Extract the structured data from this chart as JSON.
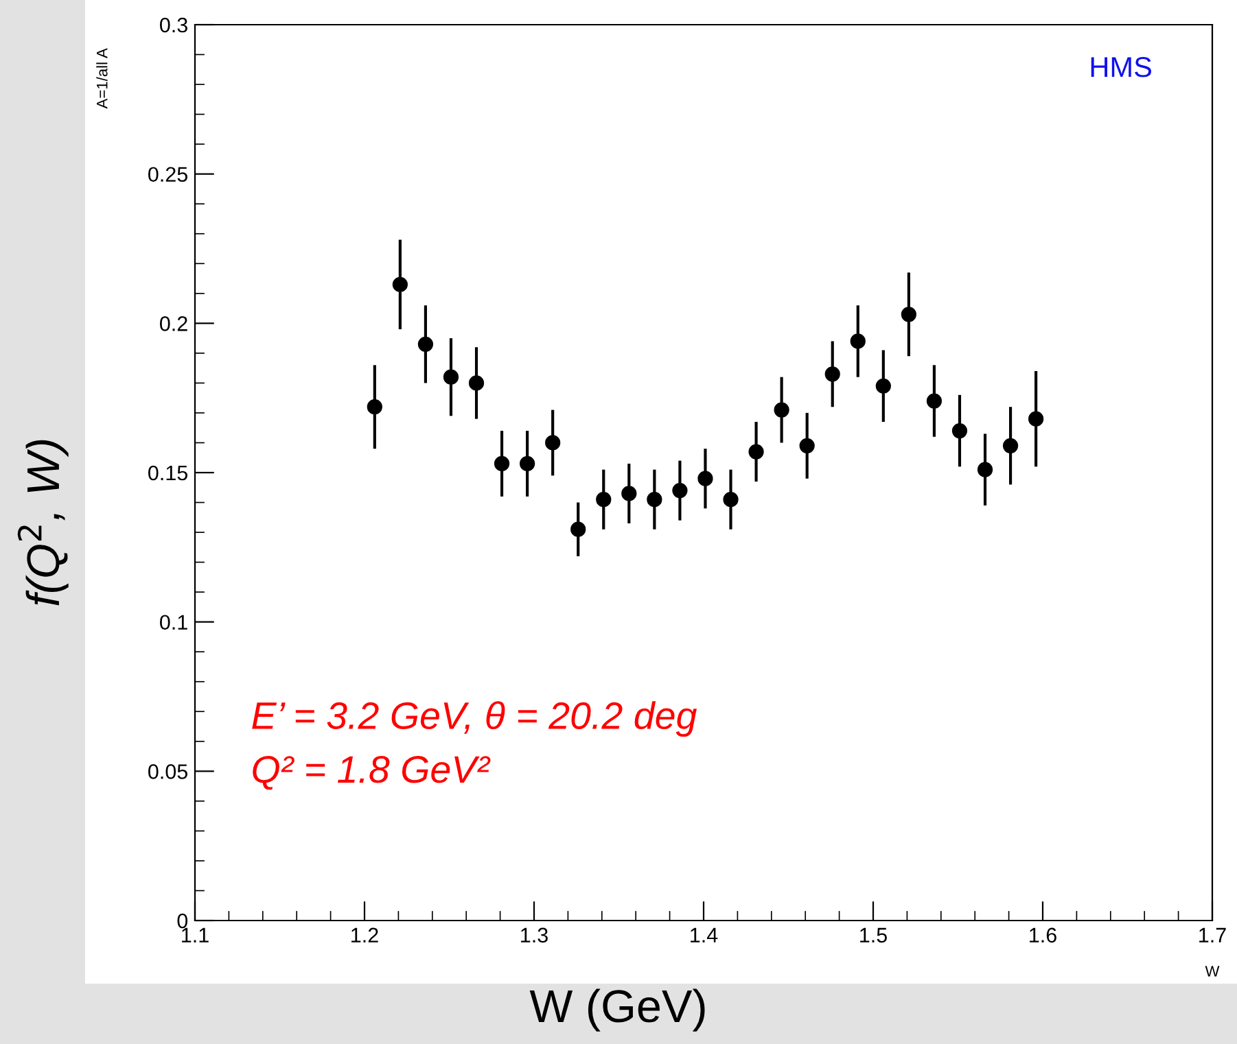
{
  "chart_data": {
    "type": "scatter",
    "xlabel": "W (GeV)",
    "ylabel": "f(Q$^{2}$, W)",
    "x": [
      1.206,
      1.221,
      1.236,
      1.251,
      1.266,
      1.281,
      1.296,
      1.311,
      1.326,
      1.341,
      1.356,
      1.371,
      1.386,
      1.401,
      1.416,
      1.431,
      1.446,
      1.461,
      1.476,
      1.491,
      1.506,
      1.521,
      1.536,
      1.551,
      1.566,
      1.581,
      1.596
    ],
    "values": [
      0.172,
      0.213,
      0.193,
      0.182,
      0.18,
      0.153,
      0.153,
      0.16,
      0.131,
      0.141,
      0.143,
      0.141,
      0.144,
      0.148,
      0.141,
      0.157,
      0.171,
      0.159,
      0.183,
      0.194,
      0.179,
      0.203,
      0.174,
      0.164,
      0.151,
      0.159,
      0.168
    ],
    "errors": [
      0.014,
      0.015,
      0.013,
      0.013,
      0.012,
      0.011,
      0.011,
      0.011,
      0.009,
      0.01,
      0.01,
      0.01,
      0.01,
      0.01,
      0.01,
      0.01,
      0.011,
      0.011,
      0.011,
      0.012,
      0.012,
      0.014,
      0.012,
      0.012,
      0.012,
      0.013,
      0.016
    ],
    "color": "#000000",
    "marker": "circle",
    "xlim": [
      1.1,
      1.7
    ],
    "xticks": [
      1.1,
      1.2,
      1.3,
      1.4,
      1.5,
      1.6,
      1.7
    ],
    "ylim": [
      0,
      0.3
    ],
    "yticks": [
      0,
      0.05,
      0.1,
      0.15,
      0.2,
      0.25,
      0.3
    ],
    "annotations": [
      "HMS",
      "E’ = 3.2 GeV, θ = 20.2 deg",
      "Q² = 1.8 GeV²",
      "A=1/all A",
      "W"
    ],
    "grid": false,
    "legend": false
  }
}
